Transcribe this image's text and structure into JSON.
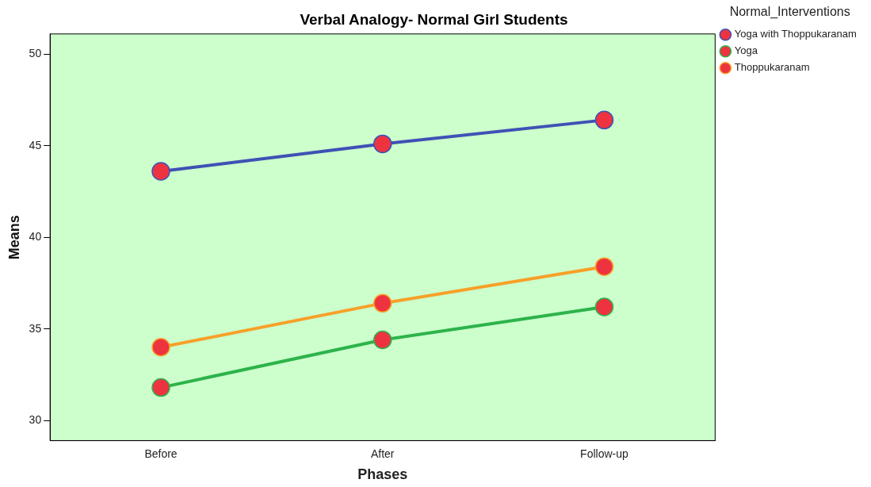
{
  "chart_data": {
    "type": "line",
    "title": "Verbal Analogy- Normal Girl Students",
    "xlabel": "Phases",
    "ylabel": "Means",
    "legend_title": "Normal_Interventions",
    "categories": [
      "Before",
      "After",
      "Follow-up"
    ],
    "series": [
      {
        "name": "Yoga with Thoppukaranam",
        "color": "#3f51b5",
        "values": [
          43.6,
          45.1,
          46.4
        ]
      },
      {
        "name": "Yoga",
        "color": "#2db34a",
        "values": [
          31.8,
          34.4,
          36.2
        ]
      },
      {
        "name": "Thoppukaranam",
        "color": "#f7a028",
        "values": [
          34.0,
          36.4,
          38.4
        ]
      }
    ],
    "ylim": [
      28.9,
      51.1
    ],
    "yticks": [
      30,
      35,
      40,
      45,
      50
    ],
    "grid": false,
    "legend": "top right",
    "marker": "circle",
    "line_style": "solid"
  }
}
